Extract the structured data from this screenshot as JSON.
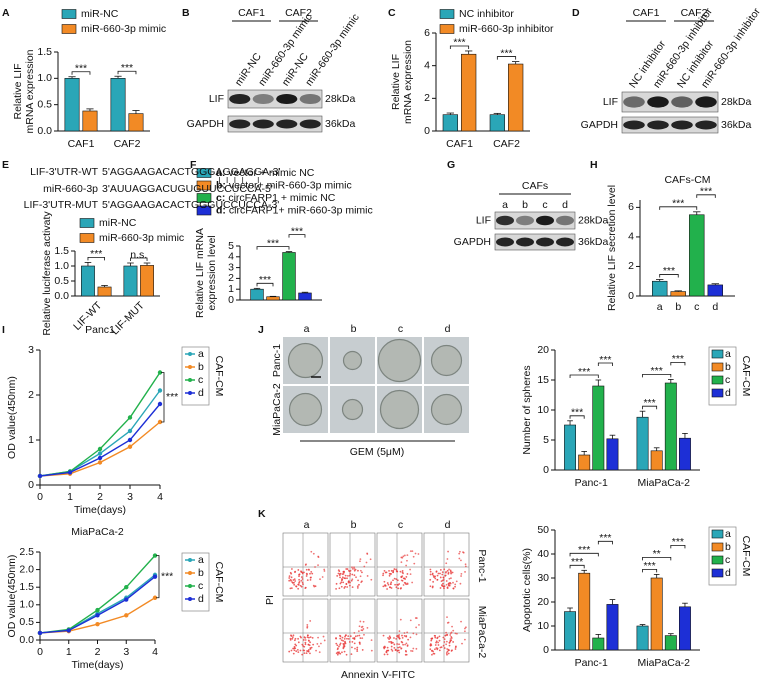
{
  "panel_labels": [
    "A",
    "B",
    "C",
    "D",
    "E",
    "F",
    "G",
    "H",
    "I",
    "J",
    "K"
  ],
  "chart_data": [
    {
      "type": "bar",
      "ylabel": [
        "Relative LIF",
        "mRNA expression"
      ],
      "categories": [
        "CAF1",
        "CAF2"
      ],
      "series": [
        {
          "name": "miR-NC",
          "color": "#2aa6b7",
          "values": [
            1.0,
            1.0
          ],
          "errors": [
            0.03,
            0.04
          ]
        },
        {
          "name": "miR-660-3p mimic",
          "color": "#f28a25",
          "values": [
            0.38,
            0.33
          ],
          "errors": [
            0.04,
            0.06
          ]
        }
      ],
      "ylim": [
        0,
        1.5
      ],
      "yticks": [
        {
          "value": 0,
          "label": "0.0"
        },
        0.5,
        {
          "value": 1,
          "label": "1.0"
        },
        1.5
      ],
      "legend": "top",
      "comparisons": [
        [
          {
            "pair": [
              "miR-NC",
              "miR-660-3p mimic"
            ],
            "label": "***"
          }
        ],
        [
          {
            "pair": [
              "miR-NC",
              "miR-660-3p mimic"
            ],
            "label": "***"
          }
        ]
      ]
    },
    {
      "type": "bar",
      "ylabel": [
        "Relative LIF",
        "mRNA expression"
      ],
      "categories": [
        "CAF1",
        "CAF2"
      ],
      "series": [
        {
          "name": "NC inhibitor",
          "color": "#2aa6b7",
          "values": [
            1.0,
            1.0
          ],
          "errors": [
            0.1,
            0.08
          ]
        },
        {
          "name": "miR-660-3p inhibitor",
          "color": "#f28a25",
          "values": [
            4.7,
            4.1
          ],
          "errors": [
            0.2,
            0.15
          ]
        }
      ],
      "ylim": [
        0,
        6
      ],
      "yticks": [
        0,
        2,
        4,
        6
      ],
      "legend": "top",
      "comparisons": [
        [
          {
            "pair": [
              "NC inhibitor",
              "miR-660-3p inhibitor"
            ],
            "label": "***"
          }
        ],
        [
          {
            "pair": [
              "NC inhibitor",
              "miR-660-3p inhibitor"
            ],
            "label": "***"
          }
        ]
      ]
    },
    {
      "type": "bar",
      "ylabel": [
        "Relative luciferase activaty"
      ],
      "categories": [
        "LIF-WT",
        "LIF-MUT"
      ],
      "xtick_rotation": 45,
      "series": [
        {
          "name": "miR-NC",
          "color": "#2aa6b7",
          "values": [
            1.0,
            1.0
          ],
          "errors": [
            0.12,
            0.1
          ]
        },
        {
          "name": "miR-660-3p mimic",
          "color": "#f28a25",
          "values": [
            0.3,
            1.02
          ],
          "errors": [
            0.05,
            0.08
          ]
        }
      ],
      "ylim": [
        0,
        1.5
      ],
      "yticks": [
        {
          "value": 0,
          "label": "0.0"
        },
        0.5,
        {
          "value": 1,
          "label": "1.0"
        },
        1.5
      ],
      "legend": "top",
      "comparisons": [
        [
          {
            "pair": [
              "miR-NC",
              "miR-660-3p mimic"
            ],
            "label": "***"
          }
        ],
        [
          {
            "pair": [
              "miR-NC",
              "miR-660-3p mimic"
            ],
            "label": "n.s."
          }
        ]
      ]
    },
    {
      "type": "bar",
      "ylabel": [
        "Relative LIF mRNA",
        "expression level"
      ],
      "categories": [
        null
      ],
      "series": [
        {
          "name": "a:",
          "description": "vector + mimic NC",
          "color": "#2aa6b7",
          "values": [
            1.0
          ],
          "errors": [
            0.08
          ]
        },
        {
          "name": "b:",
          "description": "vector+ miR-660-3p mimic",
          "color": "#f28a25",
          "values": [
            0.3
          ],
          "errors": [
            0.04
          ]
        },
        {
          "name": "c:",
          "description": "circFARP1 + mimic NC",
          "color": "#22b14c",
          "values": [
            4.4
          ],
          "errors": [
            0.08
          ]
        },
        {
          "name": "d:",
          "description": "circFARP1+ miR-660-3p mimic",
          "color": "#1d2fd6",
          "values": [
            0.65
          ],
          "errors": [
            0.07
          ]
        }
      ],
      "ylim": [
        0,
        5
      ],
      "yticks": [
        0,
        1,
        2,
        3,
        4,
        5
      ],
      "legend": "top",
      "comparisons": [
        [
          {
            "pair": [
              "a:",
              "b:"
            ],
            "label": "***"
          },
          {
            "pair": [
              "a:",
              "c:"
            ],
            "label": "***"
          },
          {
            "pair": [
              "c:",
              "d:"
            ],
            "label": "***"
          }
        ]
      ]
    },
    {
      "type": "bar",
      "title": "CAFs-CM",
      "ylabel": [
        "Relative LIF secretion level"
      ],
      "categories": [
        null
      ],
      "series": [
        {
          "name": "a",
          "color": "#2aa6b7",
          "values": [
            1.0
          ],
          "errors": [
            0.12
          ]
        },
        {
          "name": "b",
          "color": "#f28a25",
          "values": [
            0.3
          ],
          "errors": [
            0.05
          ]
        },
        {
          "name": "c",
          "color": "#22b14c",
          "values": [
            5.5
          ],
          "errors": [
            0.2
          ]
        },
        {
          "name": "d",
          "color": "#1d2fd6",
          "values": [
            0.75
          ],
          "errors": [
            0.08
          ]
        }
      ],
      "ylim": [
        0,
        6.5
      ],
      "yticks": [
        0,
        2,
        4,
        6
      ],
      "legend": "none",
      "comparisons": [
        [
          {
            "pair": [
              "a",
              "b"
            ],
            "label": "***"
          },
          {
            "pair": [
              "a",
              "c"
            ],
            "label": "***"
          },
          {
            "pair": [
              "c",
              "d"
            ],
            "label": "***"
          }
        ]
      ]
    },
    {
      "type": "line",
      "title": "Panc1",
      "xlabel": "Time(days)",
      "ylabel": [
        "OD value(450nm)"
      ],
      "x": [
        0,
        1,
        2,
        3,
        4
      ],
      "xlim": [
        0,
        4
      ],
      "xticks": [
        0,
        1,
        2,
        3,
        4
      ],
      "ylim": [
        0,
        3
      ],
      "yticks": [
        0,
        1,
        2,
        3
      ],
      "legend": "right",
      "legend_title": "CAF-CM",
      "annotation": "***",
      "series": [
        {
          "name": "a",
          "color": "#2aa6b7",
          "values": [
            0.2,
            0.3,
            0.7,
            1.2,
            2.1
          ]
        },
        {
          "name": "b",
          "color": "#f28a25",
          "values": [
            0.2,
            0.25,
            0.5,
            0.85,
            1.4
          ]
        },
        {
          "name": "c",
          "color": "#22b14c",
          "values": [
            0.2,
            0.3,
            0.8,
            1.5,
            2.5
          ]
        },
        {
          "name": "d",
          "color": "#1d2fd6",
          "values": [
            0.2,
            0.28,
            0.6,
            1.0,
            1.8
          ]
        }
      ]
    },
    {
      "type": "line",
      "title": "MiaPaCa-2",
      "xlabel": "Time(days)",
      "ylabel": [
        "OD value(450nm)"
      ],
      "x": [
        0,
        1,
        2,
        3,
        4
      ],
      "xlim": [
        0,
        4
      ],
      "xticks": [
        0,
        1,
        2,
        3,
        4
      ],
      "ylim": [
        0,
        2.5
      ],
      "yticks": [
        {
          "value": 0,
          "label": "0.0"
        },
        0.5,
        {
          "value": 1,
          "label": "1.0"
        },
        1.5,
        {
          "value": 2,
          "label": "2.0"
        },
        2.5
      ],
      "legend": "right",
      "legend_title": "CAF-CM",
      "annotation": "***",
      "series": [
        {
          "name": "a",
          "color": "#2aa6b7",
          "values": [
            0.2,
            0.28,
            0.75,
            1.2,
            1.85
          ]
        },
        {
          "name": "b",
          "color": "#f28a25",
          "values": [
            0.2,
            0.25,
            0.45,
            0.7,
            1.2
          ]
        },
        {
          "name": "c",
          "color": "#22b14c",
          "values": [
            0.2,
            0.3,
            0.85,
            1.5,
            2.4
          ]
        },
        {
          "name": "d",
          "color": "#1d2fd6",
          "values": [
            0.2,
            0.27,
            0.7,
            1.15,
            1.8
          ]
        }
      ]
    },
    {
      "type": "bar",
      "ylabel": [
        "Number of spheres"
      ],
      "categories": [
        "Panc-1",
        "MiaPaCa-2"
      ],
      "legend": "right",
      "legend_title": "CAF-CM",
      "series": [
        {
          "name": "a",
          "color": "#2aa6b7",
          "values": [
            7.5,
            8.8
          ],
          "errors": [
            0.7,
            1.0
          ]
        },
        {
          "name": "b",
          "color": "#f28a25",
          "values": [
            2.5,
            3.2
          ],
          "errors": [
            0.6,
            0.5
          ]
        },
        {
          "name": "c",
          "color": "#22b14c",
          "values": [
            14,
            14.5
          ],
          "errors": [
            1.0,
            0.6
          ]
        },
        {
          "name": "d",
          "color": "#1d2fd6",
          "values": [
            5.2,
            5.3
          ],
          "errors": [
            0.6,
            0.8
          ]
        }
      ],
      "ylim": [
        0,
        20
      ],
      "yticks": [
        0,
        5,
        10,
        15,
        20
      ],
      "comparisons": [
        [
          {
            "pair": [
              "a",
              "b"
            ],
            "label": "***"
          },
          {
            "pair": [
              "a",
              "c"
            ],
            "label": "***"
          },
          {
            "pair": [
              "c",
              "d"
            ],
            "label": "***"
          }
        ],
        [
          {
            "pair": [
              "a",
              "b"
            ],
            "label": "***"
          },
          {
            "pair": [
              "a",
              "c"
            ],
            "label": "***"
          },
          {
            "pair": [
              "c",
              "d"
            ],
            "label": "***"
          }
        ]
      ]
    },
    {
      "type": "bar",
      "ylabel": [
        "Apoptotic cells(%)"
      ],
      "categories": [
        "Panc-1",
        "MiaPaCa-2"
      ],
      "legend": "right",
      "legend_title": "CAF-CM",
      "series": [
        {
          "name": "a",
          "color": "#2aa6b7",
          "values": [
            16,
            10
          ],
          "errors": [
            1.5,
            0.6
          ]
        },
        {
          "name": "b",
          "color": "#f28a25",
          "values": [
            32,
            30
          ],
          "errors": [
            1.2,
            1.5
          ]
        },
        {
          "name": "c",
          "color": "#22b14c",
          "values": [
            5,
            6
          ],
          "errors": [
            1.5,
            0.8
          ]
        },
        {
          "name": "d",
          "color": "#1d2fd6",
          "values": [
            19,
            18
          ],
          "errors": [
            2,
            1.5
          ]
        }
      ],
      "ylim": [
        0,
        50
      ],
      "yticks": [
        0,
        10,
        20,
        30,
        40,
        50
      ],
      "comparisons": [
        [
          {
            "pair": [
              "a",
              "b"
            ],
            "label": "***"
          },
          {
            "pair": [
              "a",
              "c"
            ],
            "label": "***"
          },
          {
            "pair": [
              "c",
              "d"
            ],
            "label": "***"
          }
        ],
        [
          {
            "pair": [
              "a",
              "b"
            ],
            "label": "***"
          },
          {
            "pair": [
              "a",
              "c"
            ],
            "label": "**"
          },
          {
            "pair": [
              "c",
              "d"
            ],
            "label": "***"
          }
        ]
      ]
    }
  ],
  "blots": [
    {
      "groups": [
        "CAF1",
        "CAF2"
      ],
      "lanes": [
        "miR-NC",
        "miR-660-3p mimic",
        "miR-NC",
        "miR-660-3p mimic"
      ],
      "rows": [
        "LIF",
        "GAPDH"
      ],
      "sizes": [
        "28kDa",
        "36kDa"
      ]
    },
    {
      "groups": [
        "CAF1",
        "CAF2"
      ],
      "lanes": [
        "NC inhibitor",
        "miR-660-3p inhibitor",
        "NC inhibitor",
        "miR-660-3p inhibitor"
      ],
      "rows": [
        "LIF",
        "GAPDH"
      ],
      "sizes": [
        "28kDa",
        "36kDa"
      ]
    },
    {
      "groups": [
        "CAFs"
      ],
      "lanes": [
        "a",
        "b",
        "c",
        "d"
      ],
      "rows": [
        "LIF",
        "GAPDH"
      ],
      "sizes": [
        "28kDa",
        "36kDa"
      ]
    }
  ],
  "sequences": [
    {
      "label": "LIF-3'UTR-WT",
      "parts": [
        "5'AGGAAGACACTGGG",
        "AGGAGG",
        "A-3'"
      ],
      "highlight": true
    },
    {
      "label": "miR-660-3p",
      "parts": [
        "3'AUUAGGACUGUGU",
        "UCCUCC",
        "A-5'"
      ],
      "highlight": false
    },
    {
      "label": "LIF-3'UTR-MUT",
      "parts": [
        "5'AGGAAGACACTGGG",
        "UCCUCC",
        "A-3'"
      ],
      "highlight": true
    }
  ],
  "micrographs": {
    "columns": [
      "a",
      "b",
      "c",
      "d"
    ],
    "rows": [
      "Panc-1",
      "MiaPaCa-2"
    ],
    "caption": "GEM (5μM)"
  },
  "flow_plots": {
    "columns": [
      "a",
      "b",
      "c",
      "d"
    ],
    "rows": [
      "Panc-1",
      "MiaPaCa-2"
    ],
    "y_axis": "PI",
    "x_axis": "Annexin V-FITC"
  }
}
